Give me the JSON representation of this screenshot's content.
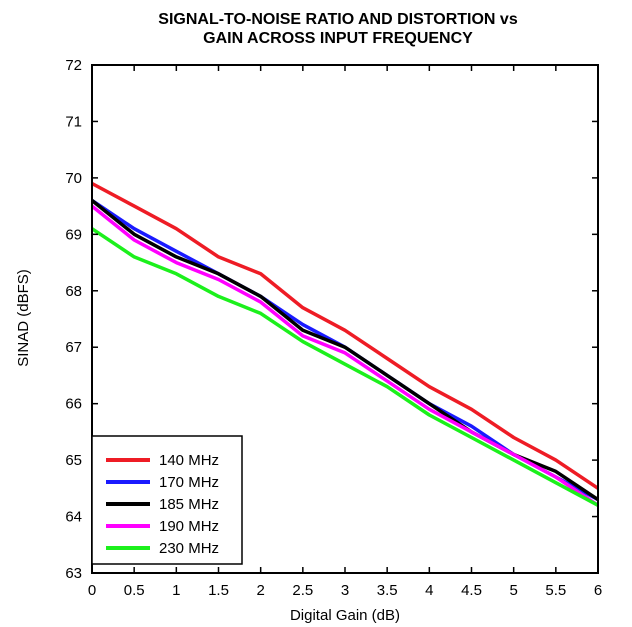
{
  "chart_data": {
    "type": "line",
    "title_lines": [
      "SIGNAL-TO-NOISE RATIO AND DISTORTION vs",
      "GAIN ACROSS INPUT FREQUENCY"
    ],
    "xlabel": "Digital Gain (dB)",
    "ylabel": "SINAD (dBFS)",
    "xlim": [
      0,
      6
    ],
    "ylim": [
      63,
      72
    ],
    "x_ticks": [
      "0",
      "0.5",
      "1",
      "1.5",
      "2",
      "2.5",
      "3",
      "3.5",
      "4",
      "4.5",
      "5",
      "5.5",
      "6"
    ],
    "y_ticks": [
      "63",
      "64",
      "65",
      "66",
      "67",
      "68",
      "69",
      "70",
      "71",
      "72"
    ],
    "grid": false,
    "legend_position": "bottom-left",
    "x": [
      0,
      0.5,
      1,
      1.5,
      2,
      2.5,
      3,
      3.5,
      4,
      4.5,
      5,
      5.5,
      6
    ],
    "series": [
      {
        "name": "140 MHz",
        "color": "#ee1c25",
        "values": [
          69.9,
          69.5,
          69.1,
          68.6,
          68.3,
          67.7,
          67.3,
          66.8,
          66.3,
          65.9,
          65.4,
          65.0,
          64.5
        ]
      },
      {
        "name": "170 MHz",
        "color": "#1a1aff",
        "values": [
          69.6,
          69.1,
          68.7,
          68.3,
          67.9,
          67.4,
          67.0,
          66.5,
          66.0,
          65.6,
          65.1,
          64.7,
          64.3
        ]
      },
      {
        "name": "185 MHz",
        "color": "#000000",
        "values": [
          69.6,
          69.0,
          68.6,
          68.3,
          67.9,
          67.3,
          67.0,
          66.5,
          66.0,
          65.5,
          65.1,
          64.8,
          64.3
        ]
      },
      {
        "name": "190 MHz",
        "color": "#ff00ff",
        "values": [
          69.5,
          68.9,
          68.5,
          68.2,
          67.8,
          67.2,
          66.9,
          66.4,
          65.9,
          65.5,
          65.1,
          64.7,
          64.2
        ]
      },
      {
        "name": "230 MHz",
        "color": "#1cf01c",
        "values": [
          69.1,
          68.6,
          68.3,
          67.9,
          67.6,
          67.1,
          66.7,
          66.3,
          65.8,
          65.4,
          65.0,
          64.6,
          64.2
        ]
      }
    ]
  }
}
